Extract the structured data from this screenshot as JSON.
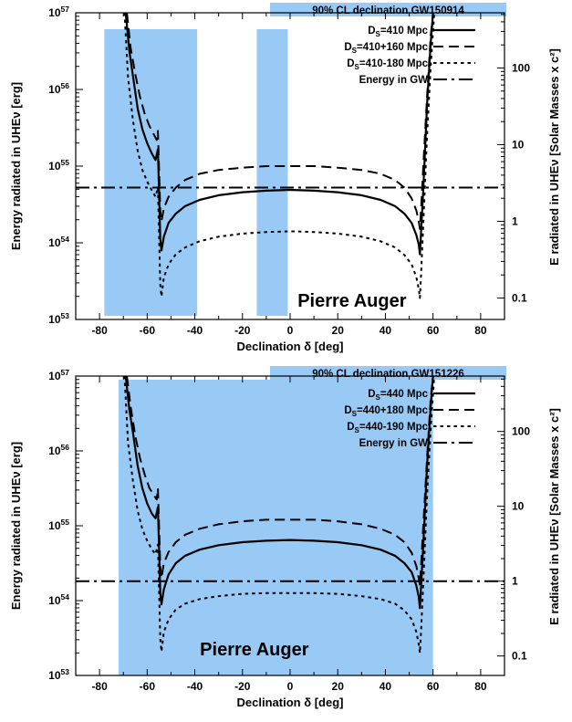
{
  "chart_data": [
    {
      "type": "line",
      "banner": "90% CL declination GW150914",
      "watermark": "Pierre Auger",
      "xlabel": "Declination δ [deg]",
      "ylabel": "Energy radiated in UHEν [erg]",
      "y2label": "E radiated in UHEν [Solar Masses x c²]",
      "xlim": [
        -90,
        90
      ],
      "ylim_log10": [
        53,
        57
      ],
      "y_scale": "log",
      "grid": false,
      "legend_position": "top-right",
      "xticks": [
        -80,
        -60,
        -40,
        -20,
        0,
        20,
        40,
        60,
        80
      ],
      "yticks": [
        {
          "exp": 53,
          "label": "10",
          "sup": "53"
        },
        {
          "exp": 54,
          "label": "10",
          "sup": "54"
        },
        {
          "exp": 55,
          "label": "10",
          "sup": "55"
        },
        {
          "exp": 56,
          "label": "10",
          "sup": "56"
        },
        {
          "exp": 57,
          "label": "10",
          "sup": "57"
        }
      ],
      "y2ticks": [
        {
          "value": 0.1,
          "label": "0.1"
        },
        {
          "value": 1,
          "label": "1"
        },
        {
          "value": 10,
          "label": "10"
        },
        {
          "value": 100,
          "label": "100"
        }
      ],
      "shaded_declination_bands": [
        [
          -78,
          -39
        ],
        [
          -14,
          -1
        ]
      ],
      "series": [
        {
          "name": "D_S=410 Mpc",
          "legend_main": "D",
          "legend_sub": "S",
          "legend_rest": "=410 Mpc",
          "dash": "solid",
          "x": [
            -69,
            -67.5,
            -66,
            -64,
            -62,
            -60,
            -58,
            -56.5,
            -55.5,
            -54.5,
            -54,
            -53,
            -51,
            -48,
            -44,
            -38,
            -30,
            -20,
            -10,
            0,
            10,
            20,
            30,
            38,
            44,
            48,
            51,
            53,
            54,
            54.5,
            55,
            56,
            57.5,
            59,
            60
          ],
          "y": [
            57.0,
            56.5,
            56.18,
            55.75,
            55.48,
            55.3,
            55.16,
            55.08,
            55.22,
            54.05,
            53.9,
            54.08,
            54.26,
            54.38,
            54.48,
            54.56,
            54.62,
            54.66,
            54.68,
            54.69,
            54.68,
            54.66,
            54.62,
            54.56,
            54.48,
            54.38,
            54.26,
            54.1,
            53.98,
            53.85,
            54.15,
            54.75,
            55.8,
            56.6,
            57.0
          ]
        },
        {
          "name": "D_S=410+160 Mpc",
          "legend_main": "D",
          "legend_sub": "S",
          "legend_rest": "=410+160 Mpc",
          "dash": "dashed",
          "x": [
            -68.5,
            -67,
            -65,
            -63,
            -61,
            -59,
            -57,
            -56,
            -55.5,
            -54.5,
            -54,
            -53,
            -51,
            -48,
            -44,
            -38,
            -30,
            -20,
            -10,
            0,
            10,
            20,
            30,
            38,
            44,
            48,
            51,
            53,
            54,
            54.5,
            55,
            56,
            57.5,
            59,
            60
          ],
          "y": [
            57.0,
            56.55,
            56.2,
            55.9,
            55.68,
            55.52,
            55.4,
            55.34,
            55.46,
            54.42,
            54.28,
            54.45,
            54.6,
            54.72,
            54.82,
            54.9,
            54.95,
            54.98,
            55.0,
            55.0,
            55.0,
            54.98,
            54.95,
            54.9,
            54.82,
            54.72,
            54.58,
            54.42,
            54.28,
            54.18,
            54.45,
            55.05,
            55.9,
            56.7,
            57.0
          ]
        },
        {
          "name": "D_S=410-180 Mpc",
          "legend_main": "D",
          "legend_sub": "S",
          "legend_rest": "=410-180 Mpc",
          "dash": "dotted",
          "x": [
            -69.5,
            -68,
            -66,
            -64,
            -62,
            -60,
            -58,
            -56.5,
            -55.5,
            -54.5,
            -54,
            -53,
            -51,
            -48,
            -44,
            -38,
            -30,
            -20,
            -10,
            0,
            10,
            20,
            30,
            38,
            44,
            48,
            51,
            53,
            54,
            54.5,
            55,
            56,
            57.5,
            59,
            60.5
          ],
          "y": [
            57.0,
            56.15,
            55.6,
            55.2,
            54.95,
            54.8,
            54.68,
            54.6,
            54.72,
            53.45,
            53.3,
            53.55,
            53.72,
            53.85,
            53.94,
            54.02,
            54.08,
            54.12,
            54.14,
            54.15,
            54.14,
            54.12,
            54.08,
            54.02,
            53.94,
            53.84,
            53.72,
            53.55,
            53.4,
            53.28,
            53.6,
            54.3,
            55.4,
            56.3,
            57.0
          ]
        },
        {
          "name": "Energy in GW",
          "legend_main": "Energy in GW",
          "legend_sub": "",
          "legend_rest": "",
          "dash": "dashdot",
          "x": [
            -90,
            90
          ],
          "y": [
            54.72,
            54.72
          ]
        }
      ]
    },
    {
      "type": "line",
      "banner": "90% CL declination GW151226",
      "watermark": "Pierre Auger",
      "xlabel": "Declination δ [deg]",
      "ylabel": "Energy radiated in UHEν [erg]",
      "y2label": "E radiated in UHEν [Solar Masses x c²]",
      "xlim": [
        -90,
        90
      ],
      "ylim_log10": [
        53,
        57
      ],
      "y_scale": "log",
      "grid": false,
      "legend_position": "top-right",
      "xticks": [
        -80,
        -60,
        -40,
        -20,
        0,
        20,
        40,
        60,
        80
      ],
      "yticks": [
        {
          "exp": 53,
          "label": "10",
          "sup": "53"
        },
        {
          "exp": 54,
          "label": "10",
          "sup": "54"
        },
        {
          "exp": 55,
          "label": "10",
          "sup": "55"
        },
        {
          "exp": 56,
          "label": "10",
          "sup": "56"
        },
        {
          "exp": 57,
          "label": "10",
          "sup": "57"
        }
      ],
      "y2ticks": [
        {
          "value": 0.1,
          "label": "0.1"
        },
        {
          "value": 1,
          "label": "1"
        },
        {
          "value": 10,
          "label": "10"
        },
        {
          "value": 100,
          "label": "100"
        }
      ],
      "shaded_declination_bands": [
        [
          -72,
          60
        ]
      ],
      "series": [
        {
          "name": "D_S=440 Mpc",
          "legend_main": "D",
          "legend_sub": "S",
          "legend_rest": "=440 Mpc",
          "dash": "solid",
          "x": [
            -69,
            -67.5,
            -66,
            -64,
            -62,
            -60,
            -58,
            -56.5,
            -55.5,
            -54.5,
            -54,
            -53,
            -51,
            -48,
            -44,
            -38,
            -30,
            -20,
            -10,
            0,
            10,
            20,
            30,
            38,
            44,
            48,
            51,
            53,
            54,
            54.5,
            55,
            56,
            57.5,
            59,
            60
          ],
          "y": [
            57.0,
            56.55,
            56.25,
            55.8,
            55.5,
            55.3,
            55.16,
            55.1,
            55.25,
            54.1,
            53.95,
            54.15,
            54.35,
            54.5,
            54.6,
            54.68,
            54.74,
            54.78,
            54.8,
            54.81,
            54.8,
            54.78,
            54.74,
            54.68,
            54.6,
            54.5,
            54.38,
            54.2,
            54.05,
            53.9,
            54.2,
            54.8,
            55.8,
            56.6,
            57.0
          ]
        },
        {
          "name": "D_S=440+180 Mpc",
          "legend_main": "D",
          "legend_sub": "S",
          "legend_rest": "=440+180 Mpc",
          "dash": "dashed",
          "x": [
            -68.5,
            -67,
            -65,
            -63,
            -61,
            -59,
            -57,
            -56,
            -55.5,
            -54.5,
            -54,
            -53,
            -51,
            -48,
            -44,
            -38,
            -30,
            -20,
            -10,
            0,
            10,
            20,
            30,
            38,
            44,
            48,
            51,
            53,
            54,
            54.5,
            55,
            56,
            57.5,
            59,
            60
          ],
          "y": [
            57.0,
            56.6,
            56.2,
            55.9,
            55.68,
            55.5,
            55.4,
            55.35,
            55.5,
            54.45,
            54.3,
            54.5,
            54.65,
            54.78,
            54.88,
            54.96,
            55.02,
            55.06,
            55.08,
            55.08,
            55.08,
            55.06,
            55.02,
            54.96,
            54.88,
            54.78,
            54.64,
            54.46,
            54.3,
            54.2,
            54.48,
            55.05,
            55.9,
            56.7,
            57.0
          ]
        },
        {
          "name": "D_S=440-190 Mpc",
          "legend_main": "D",
          "legend_sub": "S",
          "legend_rest": "=440-190 Mpc",
          "dash": "dotted",
          "x": [
            -69.5,
            -68,
            -66,
            -64,
            -62,
            -60,
            -58,
            -56.5,
            -55.5,
            -54.5,
            -54,
            -53,
            -51,
            -48,
            -44,
            -38,
            -30,
            -20,
            -10,
            0,
            10,
            20,
            30,
            38,
            44,
            48,
            51,
            53,
            54,
            54.5,
            55,
            56,
            57.5,
            59,
            60.5
          ],
          "y": [
            57.0,
            56.1,
            55.6,
            55.2,
            54.95,
            54.8,
            54.68,
            54.62,
            54.75,
            53.48,
            53.32,
            53.58,
            53.75,
            53.88,
            53.96,
            54.02,
            54.06,
            54.09,
            54.1,
            54.1,
            54.1,
            54.09,
            54.06,
            54.02,
            53.96,
            53.87,
            53.75,
            53.58,
            53.42,
            53.3,
            53.6,
            54.3,
            55.4,
            56.3,
            57.0
          ]
        },
        {
          "name": "Energy in GW",
          "legend_main": "Energy in GW",
          "legend_sub": "",
          "legend_rest": "",
          "dash": "dashdot",
          "x": [
            -90,
            90
          ],
          "y": [
            54.26,
            54.26
          ]
        }
      ]
    }
  ]
}
